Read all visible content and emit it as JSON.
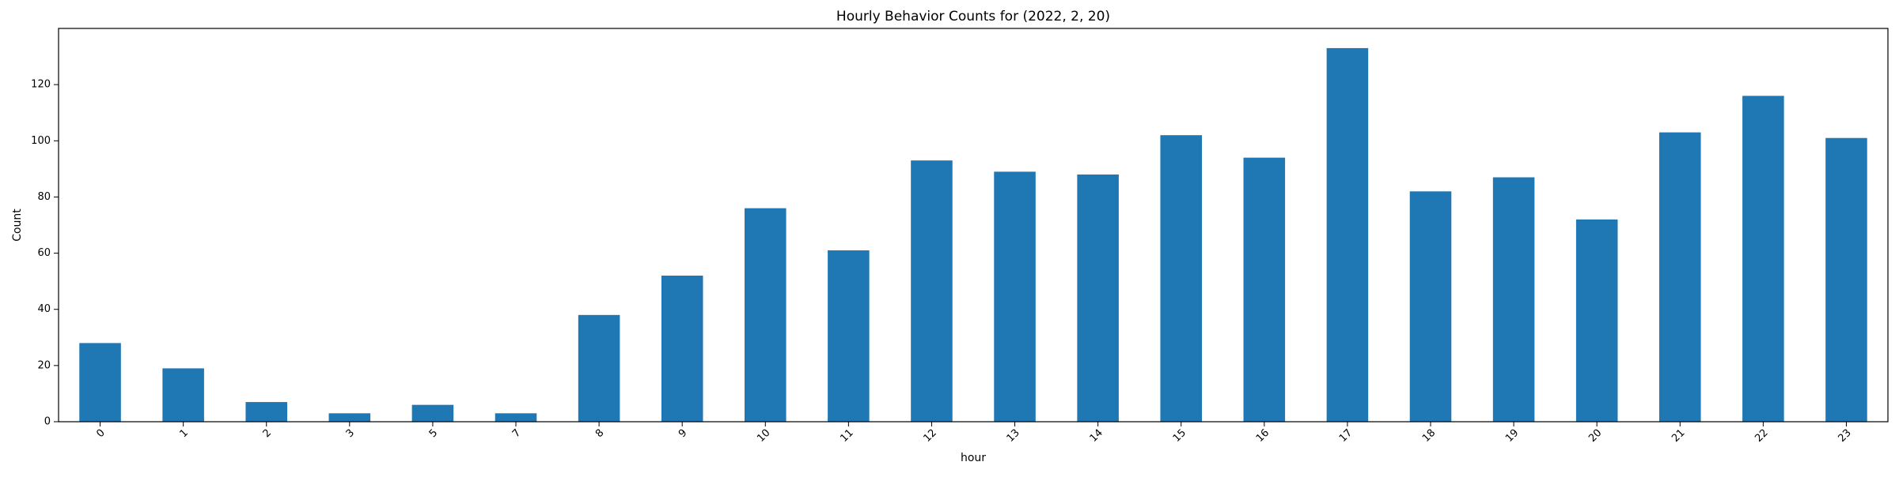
{
  "chart_data": {
    "type": "bar",
    "title": "Hourly Behavior Counts for (2022, 2, 20)",
    "xlabel": "hour",
    "ylabel": "Count",
    "categories": [
      "0",
      "1",
      "2",
      "3",
      "5",
      "7",
      "8",
      "9",
      "10",
      "11",
      "12",
      "13",
      "14",
      "15",
      "16",
      "17",
      "18",
      "19",
      "20",
      "21",
      "22",
      "23"
    ],
    "values": [
      28,
      19,
      7,
      3,
      6,
      3,
      38,
      52,
      76,
      61,
      93,
      89,
      88,
      102,
      94,
      133,
      82,
      87,
      72,
      103,
      116,
      101
    ],
    "ylim": [
      0,
      140
    ],
    "yticks": [
      0,
      20,
      40,
      60,
      80,
      100,
      120
    ],
    "grid": false,
    "bar_color": "#1f77b4"
  }
}
